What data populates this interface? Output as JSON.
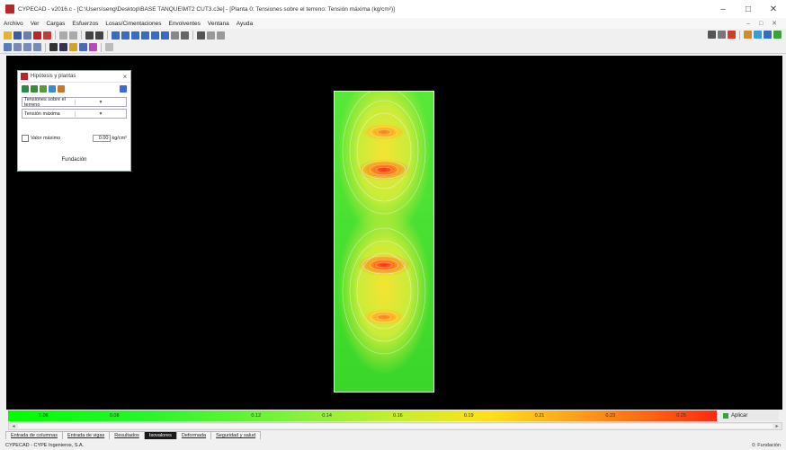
{
  "window": {
    "title": "CYPECAD - v2016.c - [C:\\Users\\seng\\Desktop\\BASE TANQUE\\MT2 CUT3.c3e] - [Planta 0: Tensiones sobre el terreno: Tensión máxima (kg/cm²)]",
    "min_label": "–",
    "max_label": "□",
    "close_label": "✕",
    "mdi_controls": "– □ ✕"
  },
  "menu": {
    "items": [
      "Archivo",
      "Ver",
      "Cargas",
      "Esfuerzos",
      "Losas/Cimentaciones",
      "Envolventes",
      "Ventana",
      "Ayuda"
    ]
  },
  "panel": {
    "title": "Hipótesis y plantas",
    "select1": "Tensiones sobre el terreno",
    "select2": "Tensión máxima",
    "checkbox_label": "Valor máximo",
    "value": "0.00",
    "unit": "kg/cm²",
    "footer": "Fundación"
  },
  "scale": {
    "labels": [
      "0.06",
      "0.08",
      "",
      "0.12",
      "0.14",
      "0.16",
      "0.19",
      "0.21",
      "0.23",
      "0.25"
    ],
    "apply_label": "Aplicar"
  },
  "tabs": [
    "Entrada de columnas",
    "Entrada de vigas",
    "Resultados",
    "Isovalores",
    "Deformada",
    "Seguridad y salud"
  ],
  "active_tab": 3,
  "status": {
    "left": "CYPECAD - CYPE Ingenieros, S.A.",
    "right": "0: Fundación"
  },
  "colors": {
    "viewport_bg": "#000000",
    "max_stress": "#ff2a10",
    "min_stress": "#00ff00"
  }
}
